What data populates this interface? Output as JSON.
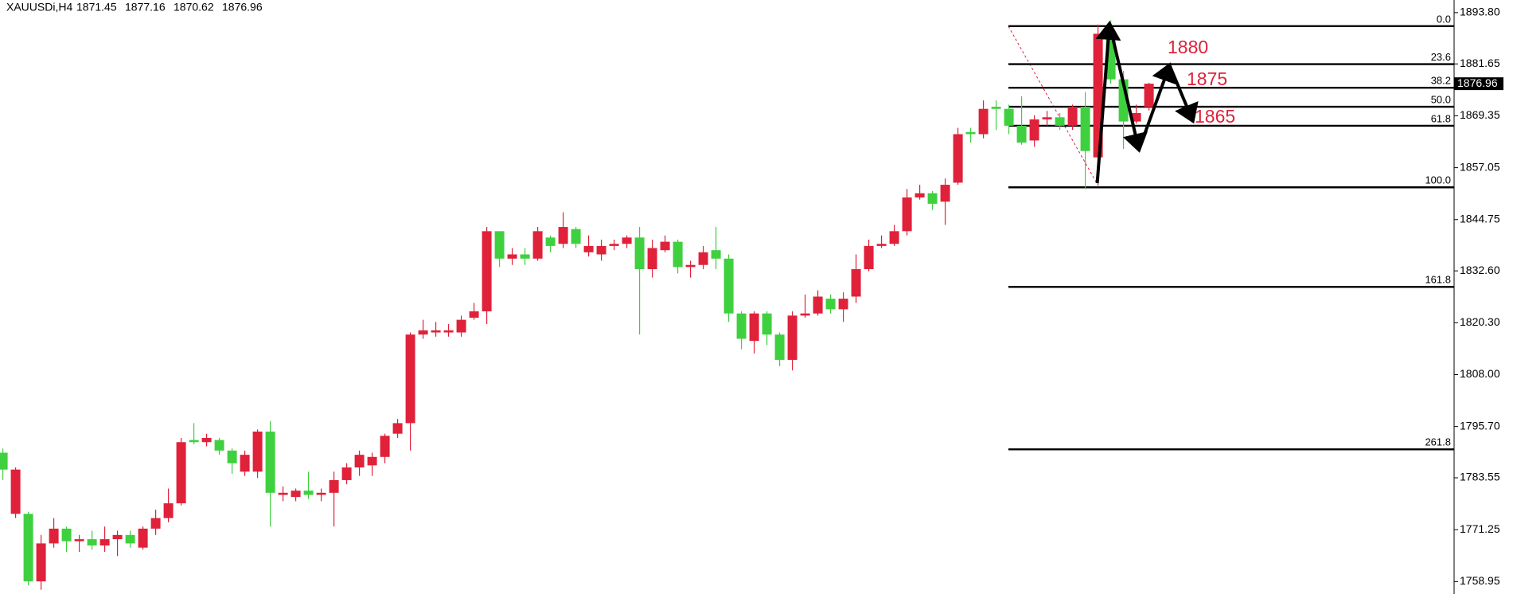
{
  "chart_data": {
    "type": "candlestick",
    "symbol": "XAUUSDi,H4",
    "open": [
      1789.5,
      1775,
      1775,
      1759,
      1768,
      1771.5,
      1768.5,
      1769,
      1767.5,
      1769,
      1770,
      1767,
      1771.5,
      1774,
      1777.5,
      1792.5,
      1792,
      1792.5,
      1790,
      1785,
      1785,
      1794.5,
      1779.5,
      1779,
      1780.5,
      1779.5,
      1780,
      1783,
      1786,
      1786.5,
      1788.5,
      1794,
      1796.5,
      1817.5,
      1818,
      1818,
      1818,
      1821.5,
      1823,
      1842,
      1835.5,
      1836.5,
      1835.5,
      1840.5,
      1839,
      1842.5,
      1837,
      1836.5,
      1838.5,
      1839,
      1840.5,
      1833,
      1837.5,
      1839.5,
      1833.5,
      1834,
      1837.5,
      1835.5,
      1822.5,
      1816,
      1822.5,
      1817.5,
      1811.5,
      1822,
      1822.5,
      1826,
      1823.5,
      1826.5,
      1833,
      1838.5,
      1839,
      1842,
      1850,
      1851,
      1849,
      1853.5,
      1865.5,
      1865,
      1871.5,
      1871,
      1867,
      1863.5,
      1868.5,
      1869,
      1867,
      1871.5,
      1859.5,
      1888.5,
      1878,
      1868,
      1871.45
    ],
    "high": [
      1790.5,
      1786,
      1775.5,
      1770,
      1774,
      1772,
      1770,
      1771,
      1772,
      1771,
      1771,
      1772,
      1776,
      1781,
      1793,
      1796.5,
      1794,
      1793,
      1790.5,
      1790,
      1795,
      1797,
      1781.5,
      1781,
      1785,
      1781,
      1785,
      1787,
      1790,
      1789.5,
      1794,
      1797.5,
      1818,
      1821,
      1820.5,
      1820,
      1822,
      1825,
      1843,
      1842,
      1838,
      1838,
      1843,
      1841,
      1846.5,
      1843,
      1841,
      1840,
      1840,
      1841,
      1843,
      1840,
      1841,
      1840,
      1835,
      1838.5,
      1843,
      1836.5,
      1823,
      1823,
      1823,
      1818,
      1823,
      1827,
      1828,
      1827,
      1827.5,
      1836.5,
      1840,
      1841,
      1843.5,
      1852,
      1853,
      1851.5,
      1854.5,
      1866.5,
      1866.5,
      1873,
      1873,
      1872,
      1874,
      1869.5,
      1870.5,
      1870,
      1872,
      1875,
      1891,
      1892,
      1880,
      1872,
      1877.16
    ],
    "low": [
      1783,
      1774,
      1758,
      1757,
      1767,
      1766,
      1766,
      1766.5,
      1766,
      1765,
      1767,
      1766.5,
      1770,
      1773,
      1777,
      1791.5,
      1791,
      1789,
      1784.5,
      1784,
      1783.5,
      1772,
      1778,
      1778,
      1778.5,
      1778,
      1772,
      1782,
      1784,
      1784,
      1787,
      1793,
      1790,
      1816.5,
      1817,
      1817,
      1817,
      1821,
      1820,
      1833.5,
      1834,
      1834,
      1835,
      1837,
      1838,
      1838,
      1836,
      1835,
      1837.5,
      1838,
      1817.5,
      1831,
      1837,
      1832,
      1831,
      1833,
      1833,
      1820.5,
      1814,
      1813,
      1815,
      1810,
      1809,
      1821.5,
      1822,
      1822.5,
      1820.5,
      1825,
      1832.5,
      1838,
      1838.5,
      1841,
      1849.5,
      1847,
      1843.5,
      1853,
      1863,
      1864,
      1866,
      1865,
      1862.5,
      1862,
      1867,
      1866,
      1866,
      1852,
      1852.8,
      1877,
      1861.5,
      1867.5,
      1870.62
    ],
    "close": [
      1785.5,
      1785.5,
      1759,
      1768,
      1771.5,
      1768.5,
      1769,
      1767.5,
      1769,
      1770,
      1768,
      1771.5,
      1774,
      1777.5,
      1792,
      1792,
      1793,
      1790,
      1787,
      1789,
      1794.5,
      1780,
      1780,
      1780.5,
      1779.5,
      1780,
      1783,
      1786,
      1789,
      1788.5,
      1793.5,
      1796.5,
      1817.5,
      1818.5,
      1818.5,
      1818.5,
      1821,
      1823,
      1842,
      1835.5,
      1836.5,
      1835.5,
      1842,
      1838.5,
      1843,
      1839,
      1838.5,
      1838.5,
      1839,
      1840.5,
      1833,
      1838,
      1839.5,
      1833.5,
      1834,
      1837,
      1835.5,
      1822.5,
      1816.5,
      1822.5,
      1817.5,
      1811.5,
      1822,
      1822.5,
      1826.5,
      1823.5,
      1826,
      1833,
      1838.5,
      1839,
      1842,
      1850,
      1851,
      1848.5,
      1853,
      1865,
      1865,
      1871,
      1871,
      1867,
      1863,
      1868.5,
      1869,
      1867,
      1871.5,
      1861,
      1888.8,
      1878,
      1868,
      1870,
      1876.96
    ],
    "up_color": "#e0213a",
    "down_color": "#3fd03f",
    "ylim": [
      1756.0,
      1896.8
    ],
    "yticks": [
      {
        "value": 1893.8,
        "label": "1893.80"
      },
      1881.65,
      1869.35,
      1857.05,
      1844.75,
      {
        "value": 1832.6,
        "label": "1832.60"
      },
      {
        "value": 1820.3,
        "label": "1820.30"
      },
      {
        "value": 1808,
        "label": "1808.00"
      },
      {
        "value": 1795.7,
        "label": "1795.70"
      },
      1783.55,
      1771.25,
      1758.95
    ],
    "grid": false,
    "fib_levels": [
      {
        "label": "0.0",
        "price": 1890.6
      },
      {
        "label": "23.6",
        "price": 1881.6
      },
      {
        "label": "38.2",
        "price": 1876.0
      },
      {
        "label": "50.0",
        "price": 1871.5
      },
      {
        "label": "61.8",
        "price": 1867.0
      },
      {
        "label": "100.0",
        "price": 1852.4
      },
      {
        "label": "161.8",
        "price": 1828.8
      },
      {
        "label": "261.8",
        "price": 1790.3
      }
    ],
    "annotations": [
      "1880",
      "1875",
      "1865"
    ]
  }
}
